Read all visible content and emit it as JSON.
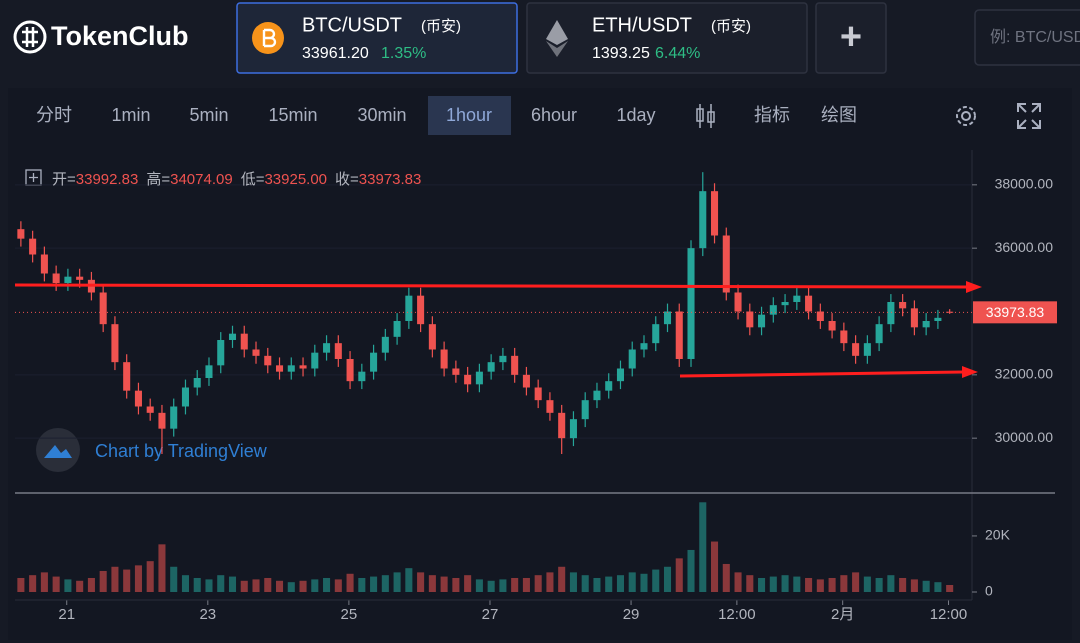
{
  "header": {
    "logo": "TokenClub",
    "tabs": [
      {
        "pair": "BTC/USDT",
        "exchange": "(币安)",
        "price": "33961.20",
        "change": "1.35%"
      },
      {
        "pair": "ETH/USDT",
        "exchange": "(币安)",
        "price": "1393.25",
        "change": "6.44%"
      }
    ],
    "add": "+",
    "search_placeholder": "例: BTC/USDT"
  },
  "toolbar": {
    "intervals": [
      "分时",
      "1min",
      "5min",
      "15min",
      "30min",
      "1hour",
      "6hour",
      "1day"
    ],
    "selected": 5,
    "tools": [
      "指标",
      "绘图"
    ]
  },
  "watermark": "Chart by TradingView",
  "legend": [
    {
      "label": "开=",
      "value": "33992.83"
    },
    {
      "label": "高=",
      "value": "34074.09"
    },
    {
      "label": "低=",
      "value": "33925.00"
    },
    {
      "label": "收=",
      "value": "33973.83"
    }
  ],
  "chart_data": {
    "type": "candlestick",
    "up_color": "#26a69a",
    "down_color": "#ef5350",
    "open": [
      36600,
      36300,
      35800,
      35200,
      34900,
      35100,
      35000,
      34600,
      33600,
      32400,
      31500,
      31000,
      30800,
      30300,
      31000,
      31600,
      31900,
      32300,
      33100,
      33300,
      32800,
      32600,
      32300,
      32100,
      32300,
      32200,
      32700,
      33000,
      32500,
      31800,
      32100,
      32700,
      33200,
      33700,
      34500,
      33600,
      32800,
      32200,
      32000,
      31700,
      32100,
      32400,
      32600,
      32000,
      31600,
      31200,
      30800,
      30000,
      30600,
      31200,
      31500,
      31800,
      32200,
      32800,
      33000,
      33600,
      34000,
      32500,
      36000,
      37800,
      36400,
      34600,
      34000,
      33500,
      33900,
      34200,
      34300,
      34500,
      34000,
      33700,
      33400,
      33000,
      32600,
      33000,
      33600,
      34300,
      34100,
      33500,
      33700,
      33992.83
    ],
    "high": [
      36850,
      36550,
      36050,
      35450,
      35350,
      35350,
      35250,
      34850,
      33850,
      32650,
      31750,
      31250,
      31050,
      31250,
      31850,
      32150,
      32550,
      33350,
      33550,
      33550,
      33050,
      32850,
      32550,
      32550,
      32550,
      32950,
      33250,
      33250,
      32750,
      32350,
      32950,
      33450,
      33950,
      34750,
      34750,
      33850,
      33050,
      32450,
      32250,
      32350,
      32650,
      32850,
      32850,
      32250,
      31850,
      31450,
      31050,
      30850,
      31450,
      31750,
      32050,
      32450,
      33050,
      33250,
      33850,
      34250,
      34250,
      36250,
      38400,
      38050,
      36650,
      34850,
      34250,
      34150,
      34450,
      34550,
      34750,
      34750,
      34250,
      33950,
      33650,
      33250,
      33250,
      33850,
      34550,
      34550,
      34350,
      33950,
      34050,
      34074.09
    ],
    "low": [
      36050,
      35550,
      34950,
      34650,
      34650,
      34750,
      34350,
      33350,
      32150,
      31250,
      30750,
      30550,
      29500,
      30050,
      30750,
      31350,
      31650,
      32050,
      32850,
      32550,
      32350,
      32050,
      31850,
      31850,
      31950,
      31950,
      32450,
      32250,
      31550,
      31550,
      31850,
      32450,
      32950,
      33450,
      33350,
      32550,
      31950,
      31750,
      31450,
      31450,
      31850,
      32150,
      31750,
      31350,
      30950,
      30550,
      29500,
      29750,
      30350,
      30950,
      31250,
      31550,
      31950,
      32550,
      32750,
      33350,
      32250,
      32250,
      35750,
      36150,
      34350,
      33750,
      33250,
      33250,
      33650,
      33950,
      34050,
      33750,
      33450,
      33150,
      32750,
      32350,
      32350,
      32750,
      33350,
      33850,
      33250,
      33250,
      33450,
      33925
    ],
    "close": [
      36300,
      35800,
      35200,
      34900,
      35100,
      35000,
      34600,
      33600,
      32400,
      31500,
      31000,
      30800,
      30300,
      31000,
      31600,
      31900,
      32300,
      33100,
      33300,
      32800,
      32600,
      32300,
      32100,
      32300,
      32200,
      32700,
      33000,
      32500,
      31800,
      32100,
      32700,
      33200,
      33700,
      34500,
      33600,
      32800,
      32200,
      32000,
      31700,
      32100,
      32400,
      32600,
      32000,
      31600,
      31200,
      30800,
      30000,
      30600,
      31200,
      31500,
      31800,
      32200,
      32800,
      33000,
      33600,
      34000,
      32500,
      36000,
      37800,
      36400,
      34600,
      34000,
      33500,
      33900,
      34200,
      34300,
      34500,
      34000,
      33700,
      33400,
      33000,
      32600,
      33000,
      33600,
      34300,
      34100,
      33500,
      33700,
      33800,
      33973.83
    ],
    "volume": [
      5000,
      6000,
      7000,
      5500,
      4500,
      4000,
      5000,
      7500,
      9000,
      8000,
      9500,
      11000,
      17000,
      9000,
      6000,
      5000,
      4500,
      6000,
      5500,
      4000,
      4500,
      5000,
      4000,
      3500,
      4000,
      4500,
      5000,
      4500,
      6500,
      5000,
      5500,
      6000,
      7000,
      8500,
      7000,
      6000,
      5500,
      5000,
      6000,
      4500,
      4000,
      4500,
      5000,
      5000,
      6000,
      7000,
      9000,
      7000,
      6000,
      5000,
      5500,
      6000,
      7000,
      6500,
      8000,
      9000,
      12000,
      15000,
      32000,
      18000,
      10000,
      7000,
      6000,
      5000,
      5500,
      6000,
      5500,
      5000,
      4500,
      5000,
      6000,
      7000,
      5500,
      5000,
      6000,
      5000,
      4500,
      4000,
      3500,
      2500
    ],
    "xlim": [
      -0.5,
      80.9
    ],
    "xticks": [
      {
        "value": 3.9,
        "label": "21"
      },
      {
        "value": 15.9,
        "label": "23"
      },
      {
        "value": 27.9,
        "label": "25"
      },
      {
        "value": 39.9,
        "label": "27"
      },
      {
        "value": 51.9,
        "label": "29"
      },
      {
        "value": 60.9,
        "label": "12:00"
      },
      {
        "value": 69.9,
        "label": "2月"
      },
      {
        "value": 78.9,
        "label": "12:00"
      }
    ],
    "ylim": [
      28300,
      39100
    ],
    "yticks": [
      {
        "value": 30000,
        "label": "30000.00"
      },
      {
        "value": 32000,
        "label": "32000.00"
      },
      {
        "value": 36000,
        "label": "36000.00"
      },
      {
        "value": 38000,
        "label": "38000.00"
      }
    ],
    "volume_ylim": [
      0,
      34600
    ],
    "volume_yticks": [
      0,
      {
        "value": 20000,
        "label": "20K"
      }
    ]
  }
}
